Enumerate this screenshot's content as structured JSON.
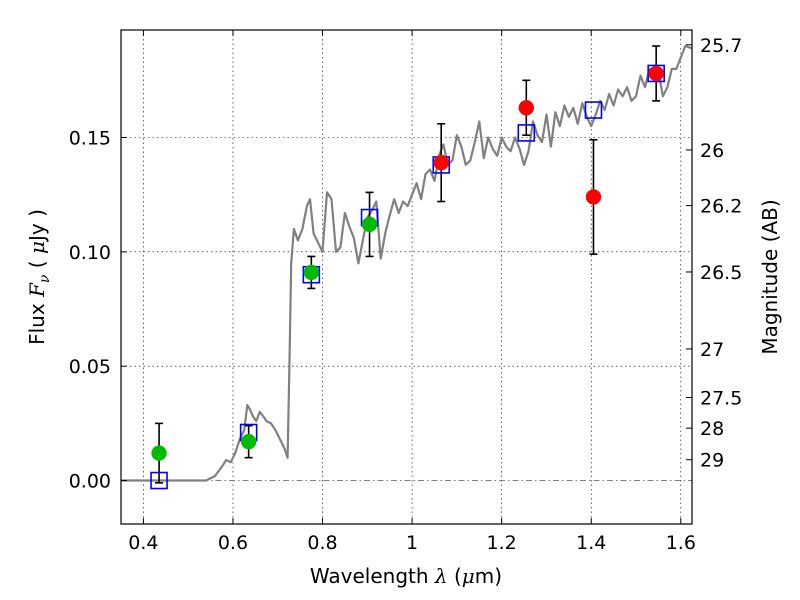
{
  "chart_data": {
    "type": "scatter",
    "xlabel": "Wavelength",
    "xlabel_symbol": "λ",
    "xlabel_unit_open": " (",
    "xlabel_unit_mu": "μ",
    "xlabel_unit_close": "m)",
    "ylabel": "Flux",
    "ylabel_symbol": "F",
    "ylabel_sub": "ν",
    "ylabel_unit_open": "  ( ",
    "ylabel_unit_mu": "μ",
    "ylabel_unit_close": "Jy )",
    "y2label": "Magnitude (AB)",
    "xlim": [
      0.35,
      1.625
    ],
    "ylim": [
      -0.019,
      0.197
    ],
    "grid": true,
    "x_ticks": [
      {
        "value": 0.4,
        "label": "0.4"
      },
      {
        "value": 0.6,
        "label": "0.6"
      },
      {
        "value": 0.8,
        "label": "0.8"
      },
      {
        "value": 1.0,
        "label": "1"
      },
      {
        "value": 1.2,
        "label": "1.2"
      },
      {
        "value": 1.4,
        "label": "1.4"
      },
      {
        "value": 1.6,
        "label": "1.6"
      }
    ],
    "y_ticks": [
      {
        "value": 0.0,
        "label": "0.00"
      },
      {
        "value": 0.05,
        "label": "0.05"
      },
      {
        "value": 0.1,
        "label": "0.10"
      },
      {
        "value": 0.15,
        "label": "0.15"
      }
    ],
    "y2_ticks": [
      {
        "mag": 25.7,
        "label": "25.7"
      },
      {
        "mag": 26.0,
        "label": "26"
      },
      {
        "mag": 26.2,
        "label": "26.2"
      },
      {
        "mag": 26.5,
        "label": "26.5"
      },
      {
        "mag": 27.0,
        "label": "27"
      },
      {
        "mag": 27.5,
        "label": "27.5"
      },
      {
        "mag": 28.0,
        "label": "28"
      },
      {
        "mag": 29.0,
        "label": "29"
      }
    ],
    "model_spectrum": {
      "color": "#808080",
      "x": [
        0.35,
        0.54,
        0.56,
        0.575,
        0.585,
        0.595,
        0.605,
        0.615,
        0.625,
        0.632,
        0.638,
        0.645,
        0.652,
        0.66,
        0.668,
        0.675,
        0.685,
        0.695,
        0.705,
        0.715,
        0.722,
        0.726,
        0.73,
        0.736,
        0.745,
        0.755,
        0.765,
        0.772,
        0.78,
        0.79,
        0.8,
        0.81,
        0.82,
        0.83,
        0.84,
        0.85,
        0.86,
        0.87,
        0.88,
        0.89,
        0.9,
        0.91,
        0.92,
        0.93,
        0.94,
        0.95,
        0.96,
        0.97,
        0.98,
        0.99,
        1.0,
        1.01,
        1.02,
        1.03,
        1.04,
        1.05,
        1.06,
        1.07,
        1.08,
        1.09,
        1.1,
        1.11,
        1.12,
        1.13,
        1.14,
        1.15,
        1.16,
        1.17,
        1.18,
        1.19,
        1.2,
        1.21,
        1.22,
        1.23,
        1.24,
        1.25,
        1.26,
        1.27,
        1.28,
        1.29,
        1.3,
        1.31,
        1.32,
        1.33,
        1.34,
        1.35,
        1.36,
        1.37,
        1.38,
        1.39,
        1.4,
        1.41,
        1.42,
        1.43,
        1.44,
        1.45,
        1.46,
        1.47,
        1.48,
        1.49,
        1.5,
        1.51,
        1.52,
        1.53,
        1.54,
        1.55,
        1.56,
        1.57,
        1.58,
        1.59,
        1.6,
        1.61,
        1.625
      ],
      "y": [
        0.0,
        0.0,
        0.002,
        0.006,
        0.009,
        0.008,
        0.012,
        0.018,
        0.022,
        0.033,
        0.031,
        0.028,
        0.026,
        0.03,
        0.028,
        0.026,
        0.025,
        0.022,
        0.018,
        0.014,
        0.01,
        0.05,
        0.095,
        0.11,
        0.105,
        0.11,
        0.12,
        0.123,
        0.108,
        0.104,
        0.1,
        0.126,
        0.123,
        0.1,
        0.102,
        0.117,
        0.111,
        0.106,
        0.095,
        0.105,
        0.115,
        0.118,
        0.122,
        0.097,
        0.108,
        0.116,
        0.123,
        0.117,
        0.122,
        0.12,
        0.125,
        0.13,
        0.123,
        0.134,
        0.136,
        0.131,
        0.142,
        0.147,
        0.138,
        0.14,
        0.151,
        0.146,
        0.138,
        0.14,
        0.148,
        0.157,
        0.141,
        0.15,
        0.145,
        0.142,
        0.15,
        0.146,
        0.144,
        0.15,
        0.145,
        0.138,
        0.144,
        0.157,
        0.151,
        0.148,
        0.16,
        0.146,
        0.161,
        0.155,
        0.164,
        0.159,
        0.163,
        0.156,
        0.165,
        0.159,
        0.155,
        0.16,
        0.166,
        0.162,
        0.169,
        0.164,
        0.171,
        0.168,
        0.172,
        0.166,
        0.168,
        0.177,
        0.172,
        0.18,
        0.175,
        0.179,
        0.168,
        0.172,
        0.18,
        0.18,
        0.185,
        0.19,
        0.189
      ]
    },
    "zero_line": {
      "y": 0.0,
      "style": "dash-dot",
      "color": "#808080"
    },
    "series": [
      {
        "marker": "open-square",
        "color": "#0000ff",
        "x": [
          0.435,
          0.635,
          0.775,
          0.905,
          1.065,
          1.255,
          1.405,
          1.545
        ],
        "y": [
          0.0,
          0.021,
          0.09,
          0.115,
          0.138,
          0.152,
          0.162,
          0.178
        ]
      },
      {
        "marker": "filled-circle",
        "color": "#00bb00",
        "x": [
          0.435,
          0.635,
          0.775,
          0.905
        ],
        "y": [
          0.012,
          0.017,
          0.091,
          0.112
        ],
        "yerr": [
          0.013,
          0.007,
          0.007,
          0.014
        ]
      },
      {
        "marker": "filled-circle",
        "color": "#ff0000",
        "x": [
          1.065,
          1.255,
          1.405,
          1.545
        ],
        "y": [
          0.139,
          0.163,
          0.124,
          0.178
        ],
        "yerr": [
          0.017,
          0.012,
          0.025,
          0.012
        ]
      }
    ]
  }
}
